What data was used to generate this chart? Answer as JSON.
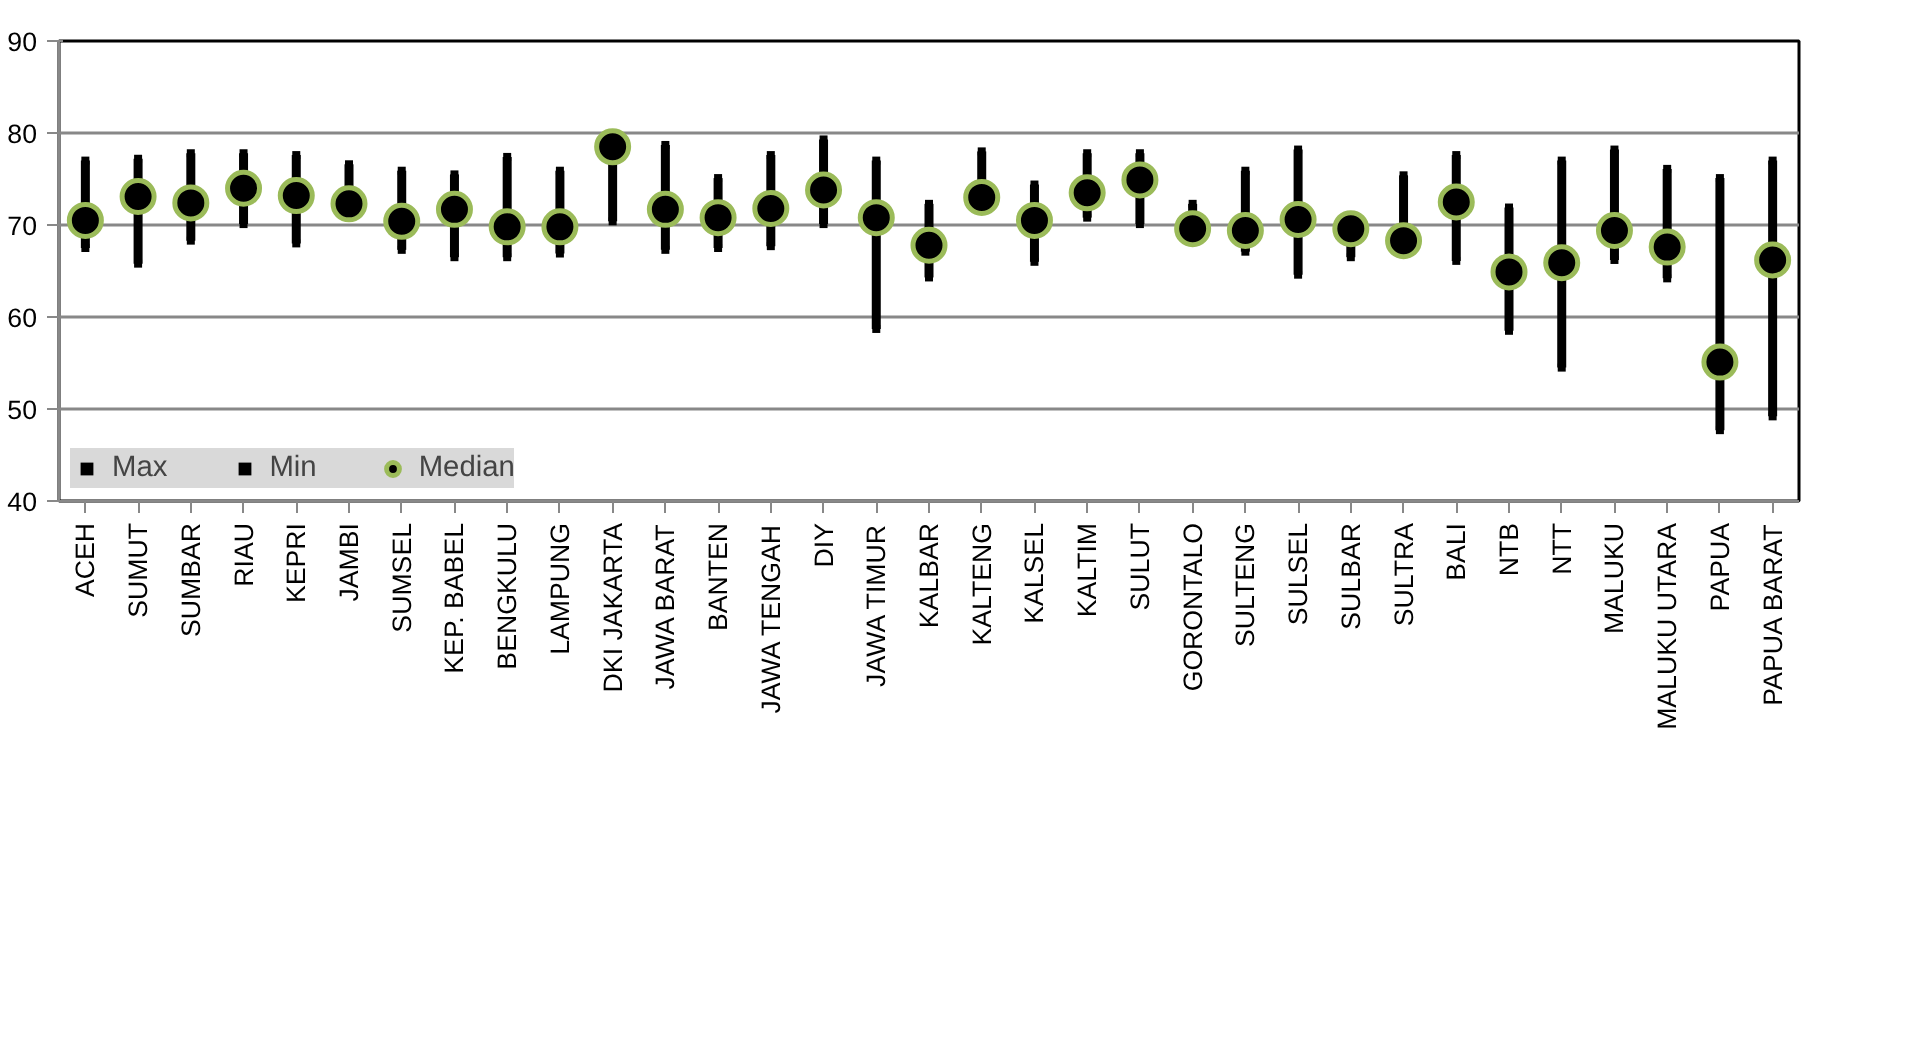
{
  "chart_data": {
    "type": "scatter",
    "categories": [
      "ACEH",
      "SUMUT",
      "SUMBAR",
      "RIAU",
      "KEPRI",
      "JAMBI",
      "SUMSEL",
      "KEP. BABEL",
      "BENGKULU",
      "LAMPUNG",
      "DKI JAKARTA",
      "JAWA BARAT",
      "BANTEN",
      "JAWA TENGAH",
      "DIY",
      "JAWA TIMUR",
      "KALBAR",
      "KALTENG",
      "KALSEL",
      "KALTIM",
      "SULUT",
      "GORONTALO",
      "SULTENG",
      "SULSEL",
      "SULBAR",
      "SULTRA",
      "BALI",
      "NTB",
      "NTT",
      "MALUKU",
      "MALUKU UTARA",
      "PAPUA",
      "PAPUA BARAT"
    ],
    "series": [
      {
        "name": "Max",
        "color": "#000000",
        "marker": "square",
        "values": [
          77.0,
          77.2,
          77.8,
          77.8,
          77.6,
          76.6,
          75.9,
          75.5,
          77.4,
          75.9,
          null,
          78.7,
          75.1,
          77.6,
          79.3,
          77.0,
          72.3,
          78.0,
          74.4,
          77.8,
          77.8,
          72.3,
          75.9,
          78.2,
          null,
          75.4,
          77.6,
          71.9,
          77.0,
          78.2,
          76.1,
          75.1,
          77.0
        ]
      },
      {
        "name": "Min",
        "color": "#000000",
        "marker": "square",
        "values": [
          67.5,
          65.8,
          68.3,
          70.1,
          68.0,
          null,
          67.3,
          66.5,
          66.5,
          66.9,
          70.4,
          67.3,
          67.5,
          67.7,
          70.1,
          58.7,
          64.3,
          null,
          66.0,
          70.8,
          70.1,
          null,
          67.1,
          64.6,
          66.5,
          null,
          66.1,
          58.5,
          54.5,
          66.2,
          64.2,
          47.7,
          49.2
        ]
      },
      {
        "name": "Median",
        "color": "#000000",
        "marker": "circle",
        "values": [
          70.5,
          73.1,
          72.4,
          74.0,
          73.2,
          72.3,
          70.4,
          71.7,
          69.8,
          69.8,
          78.5,
          71.7,
          70.8,
          71.8,
          73.8,
          70.8,
          67.8,
          73.0,
          70.5,
          73.5,
          74.9,
          69.6,
          69.4,
          70.6,
          69.6,
          68.3,
          72.5,
          64.9,
          65.9,
          69.4,
          67.6,
          55.1,
          66.2
        ]
      }
    ],
    "ylim": [
      40,
      90
    ],
    "yticks": [
      40,
      50,
      60,
      70,
      80,
      90
    ],
    "grid": "y",
    "legend": "bottom left"
  }
}
